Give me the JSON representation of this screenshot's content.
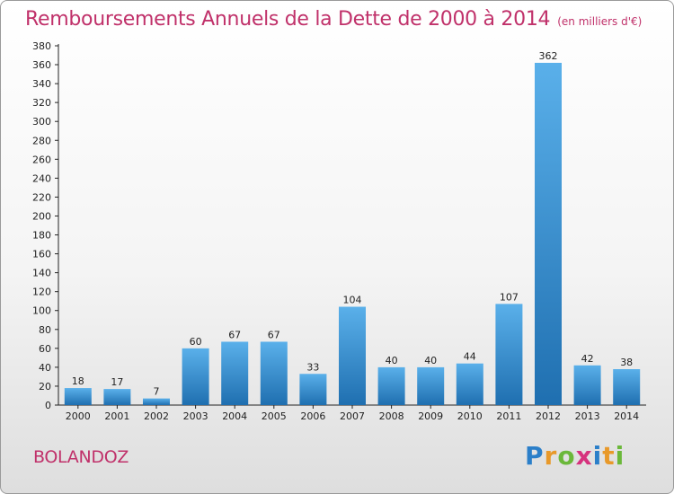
{
  "chart_data": {
    "type": "bar",
    "title": "Remboursements Annuels de la Dette de 2000 à 2014",
    "subtitle": "(en milliers d'€)",
    "categories": [
      "2000",
      "2001",
      "2002",
      "2003",
      "2004",
      "2005",
      "2006",
      "2007",
      "2008",
      "2009",
      "2010",
      "2011",
      "2012",
      "2013",
      "2014"
    ],
    "values": [
      18,
      17,
      7,
      60,
      67,
      67,
      33,
      104,
      40,
      40,
      44,
      107,
      362,
      42,
      38
    ],
    "data_labels": [
      "18",
      "17",
      "7",
      "60",
      "67",
      "67",
      "33",
      "104",
      "40",
      "40",
      "44",
      "107",
      "362",
      "42",
      "38"
    ],
    "ylim": [
      0,
      380
    ],
    "yticks": [
      0,
      20,
      40,
      60,
      80,
      100,
      120,
      140,
      160,
      180,
      200,
      220,
      240,
      260,
      280,
      300,
      320,
      340,
      360,
      380
    ],
    "xlabel": "",
    "ylabel": "",
    "grid": false,
    "colors": {
      "bar_top": "#5ab0ea",
      "bar_bottom": "#1f6fb0",
      "title": "#c0316a",
      "axis": "#222222"
    }
  },
  "footer": {
    "commune": "BOLANDOZ",
    "logo_letters": [
      {
        "ch": "P",
        "color": "#2b7fc9"
      },
      {
        "ch": "r",
        "color": "#e8992a"
      },
      {
        "ch": "o",
        "color": "#6bb83a"
      },
      {
        "ch": "x",
        "color": "#d6327d"
      },
      {
        "ch": "i",
        "color": "#2b7fc9"
      },
      {
        "ch": "t",
        "color": "#e8992a"
      },
      {
        "ch": "i",
        "color": "#6bb83a"
      }
    ]
  }
}
